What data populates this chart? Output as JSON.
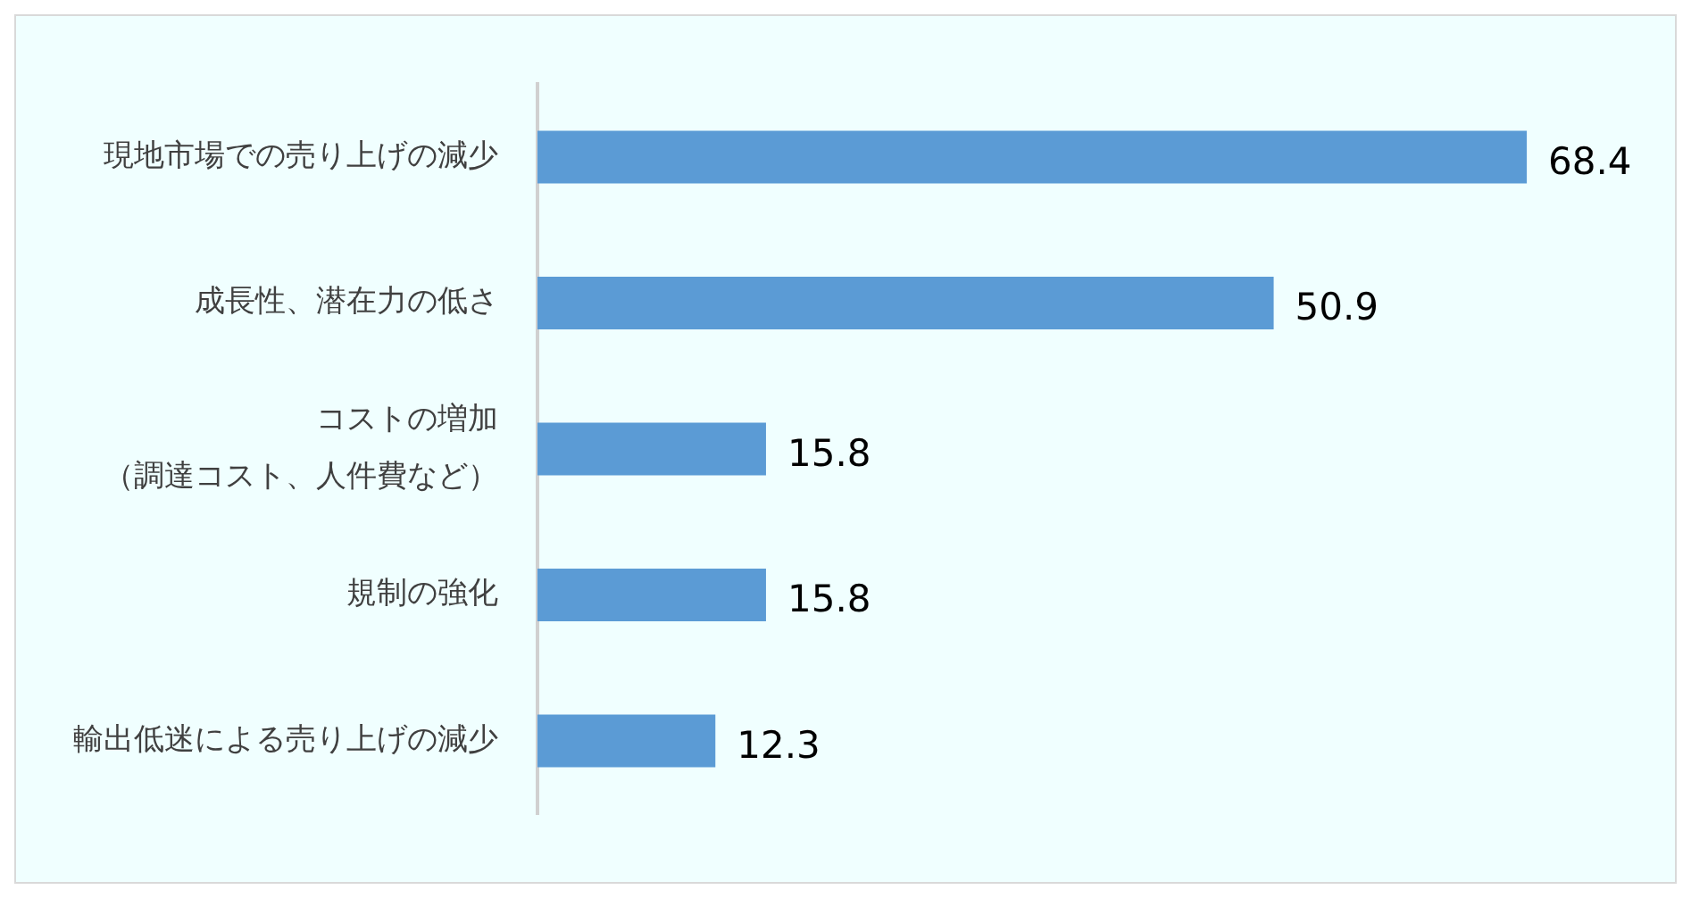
{
  "chart_data": {
    "type": "bar",
    "orientation": "horizontal",
    "categories": [
      "現地市場での売り上げの減少",
      "成長性、潜在力の低さ",
      "コストの増加（調達コスト、人件費など）",
      "規制の強化",
      "輸出低迷による売り上げの減少"
    ],
    "values": [
      68.4,
      50.9,
      15.8,
      15.8,
      12.3
    ],
    "color": "#5b9bd5",
    "data_labels": true,
    "grid": false,
    "legend": false,
    "tick_labels": "y"
  }
}
